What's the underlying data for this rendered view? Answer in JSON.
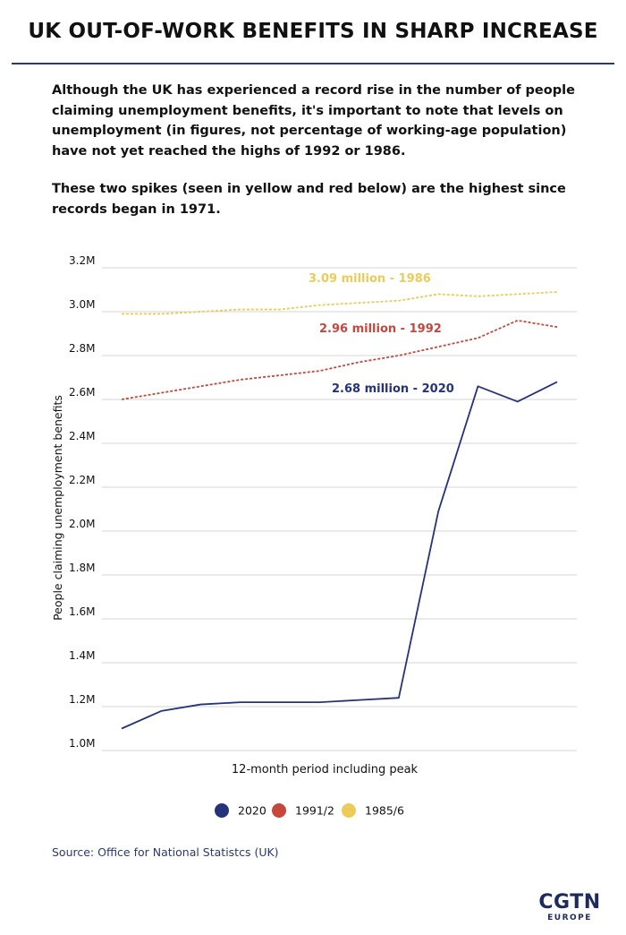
{
  "header": {
    "title": "UK OUT-OF-WORK BENEFITS IN SHARP INCREASE"
  },
  "intro": {
    "paragraph1": "Although the UK has experienced a record rise in the number of people claiming unemployment benefits, it's important to note that levels on unemployment (in figures, not percentage of working-age population) have not yet reached the highs of 1992 or 1986.",
    "paragraph2": "These two spikes (seen in yellow and red below) are the highest since records began in 1971."
  },
  "chart_data": {
    "type": "line",
    "xlabel": "12-month period including peak",
    "ylabel": "People claiming unemployment benefits",
    "ylim": [
      1.0,
      3.2
    ],
    "yticks": [
      1.0,
      1.2,
      1.4,
      1.6,
      1.8,
      2.0,
      2.2,
      2.4,
      2.6,
      2.8,
      3.0,
      3.2
    ],
    "ytick_labels": [
      "1.0M",
      "1.2M",
      "1.4M",
      "1.6M",
      "1.8M",
      "2.0M",
      "2.2M",
      "2.4M",
      "2.6M",
      "2.8M",
      "3.0M",
      "3.2M"
    ],
    "x": [
      1,
      2,
      3,
      4,
      5,
      6,
      7,
      8,
      9,
      10,
      11,
      12
    ],
    "grid": true,
    "legend_position": "bottom",
    "series": [
      {
        "name": "2020",
        "color": "#25337a",
        "style": "solid",
        "values": [
          1.1,
          1.18,
          1.21,
          1.22,
          1.22,
          1.22,
          1.23,
          1.24,
          2.09,
          2.66,
          2.59,
          2.68
        ],
        "annotation": "2.68 million - 2020"
      },
      {
        "name": "1991/2",
        "color": "#c8473c",
        "style": "dashed",
        "values": [
          2.6,
          2.63,
          2.66,
          2.69,
          2.71,
          2.73,
          2.77,
          2.8,
          2.84,
          2.88,
          2.96,
          2.93
        ],
        "annotation": "2.96 million - 1992"
      },
      {
        "name": "1985/6",
        "color": "#eccb58",
        "style": "dashed",
        "values": [
          2.99,
          2.99,
          3.0,
          3.01,
          3.01,
          3.03,
          3.04,
          3.05,
          3.08,
          3.07,
          3.08,
          3.09
        ],
        "annotation": "3.09 million - 1986"
      }
    ]
  },
  "footer": {
    "source": "Source: Office for National Statistcs (UK)",
    "logo_main": "CGTN",
    "logo_sub": "EUROPE"
  }
}
